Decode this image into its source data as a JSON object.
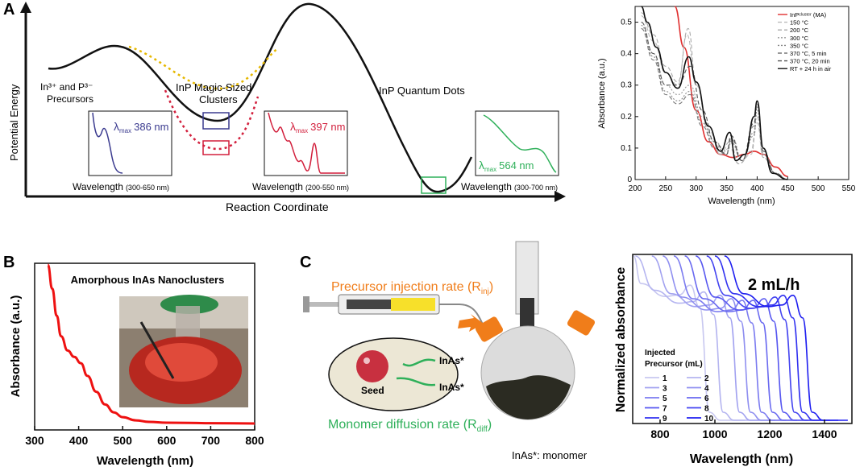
{
  "panels": {
    "A": {
      "letter": "A",
      "y_axis_label": "Potential Energy",
      "x_axis_label": "Reaction Coordinate",
      "precursors_label_1": "In³⁺ and P³⁻",
      "precursors_label_2": "Precursors",
      "msc_label_1": "InP Magic-Sized",
      "msc_label_2": "Clusters",
      "qd_label": "InP Quantum Dots",
      "insets": [
        {
          "lambda_label": "λ",
          "lambda_sub": "max",
          "value": "386 nm",
          "caption": "Wavelength",
          "range": "(300-650 nm)",
          "color": "#3b3b8f"
        },
        {
          "lambda_label": "λ",
          "lambda_sub": "max",
          "value": "397 nm",
          "caption": "Wavelength",
          "range": "(200-550 nm)",
          "color": "#d21f3c"
        },
        {
          "lambda_label": "λ",
          "lambda_sub": "max",
          "value": "564 nm",
          "caption": "Wavelength",
          "range": "(300-700 nm)",
          "color": "#2fb05a"
        }
      ]
    },
    "A_right": {
      "legend": [
        {
          "label": "InPᶜˡᵘˢᵗᵉʳ (MA)",
          "color": "#e03030",
          "dash": "solid"
        },
        {
          "label": "150 °C",
          "color": "#bbbbbb",
          "dash": "dash"
        },
        {
          "label": "200 °C",
          "color": "#aaaaaa",
          "dash": "dash"
        },
        {
          "label": "300 °C",
          "color": "#999999",
          "dash": "dot"
        },
        {
          "label": "350 °C",
          "color": "#888888",
          "dash": "dot"
        },
        {
          "label": "370 °C, 5 min",
          "color": "#777777",
          "dash": "dash"
        },
        {
          "label": "370 °C, 20 min",
          "color": "#555555",
          "dash": "dash"
        },
        {
          "label": "RT + 24 h in air",
          "color": "#111111",
          "dash": "solid"
        }
      ]
    },
    "B": {
      "letter": "B",
      "title": "Amorphous InAs Nanoclusters",
      "color": "#ee1111"
    },
    "C": {
      "letter": "C",
      "injection_label": "Precursor injection rate (R",
      "injection_sub": "inj",
      "injection_close": ")",
      "diffusion_label": "Monomer diffusion rate (R",
      "diffusion_sub": "diff",
      "diffusion_close": ")",
      "seed_label": "Seed",
      "monomer_1": "InAs*",
      "monomer_2": "InAs*",
      "monomer_note": "InAs*: monomer",
      "rate_label": "2 mL/h",
      "legend_title_1": "Injected",
      "legend_title_2": "Precursor (mL)",
      "legend_items": [
        "1",
        "2",
        "3",
        "4",
        "5",
        "6",
        "7",
        "8",
        "9",
        "10"
      ]
    }
  },
  "chart_data": [
    {
      "type": "line",
      "id": "A-right-absorbance",
      "title": "",
      "xlabel": "Wavelength (nm)",
      "ylabel": "Absorbance (a.u.)",
      "xlim": [
        200,
        550
      ],
      "ylim": [
        0,
        0.55
      ],
      "xticks": [
        "200",
        "250",
        "300",
        "350",
        "400",
        "450",
        "500",
        "550"
      ],
      "yticks": [
        "0",
        "0.1",
        "0.2",
        "0.3",
        "0.4",
        "0.5"
      ],
      "series": [
        {
          "name": "InP cluster (MA)",
          "x": [
            265,
            280,
            300,
            320,
            340,
            360,
            380,
            395,
            410,
            430,
            450
          ],
          "y": [
            0.55,
            0.42,
            0.22,
            0.12,
            0.08,
            0.07,
            0.08,
            0.09,
            0.08,
            0.04,
            0.01
          ]
        },
        {
          "name": "150 °C",
          "x": [
            210,
            230,
            250,
            270,
            285,
            300,
            320,
            340,
            355,
            370,
            390,
            400,
            410,
            430,
            450
          ],
          "y": [
            0.52,
            0.44,
            0.34,
            0.3,
            0.46,
            0.3,
            0.16,
            0.08,
            0.1,
            0.05,
            0.08,
            0.18,
            0.07,
            0.02,
            0.0
          ]
        },
        {
          "name": "200 °C",
          "x": [
            210,
            230,
            250,
            270,
            287,
            300,
            320,
            340,
            355,
            370,
            390,
            400,
            410,
            430,
            450
          ],
          "y": [
            0.53,
            0.46,
            0.36,
            0.31,
            0.48,
            0.31,
            0.17,
            0.08,
            0.12,
            0.05,
            0.09,
            0.2,
            0.07,
            0.02,
            0.0
          ]
        },
        {
          "name": "300 °C",
          "x": [
            210,
            230,
            250,
            270,
            290,
            310,
            330,
            350,
            360,
            375,
            395,
            400,
            410,
            430,
            450
          ],
          "y": [
            0.5,
            0.4,
            0.3,
            0.27,
            0.3,
            0.2,
            0.12,
            0.09,
            0.13,
            0.06,
            0.14,
            0.22,
            0.08,
            0.02,
            0.0
          ]
        },
        {
          "name": "350 °C",
          "x": [
            210,
            230,
            250,
            270,
            290,
            310,
            330,
            350,
            357,
            375,
            395,
            400,
            410,
            430,
            450
          ],
          "y": [
            0.49,
            0.39,
            0.28,
            0.25,
            0.28,
            0.18,
            0.11,
            0.08,
            0.12,
            0.06,
            0.15,
            0.23,
            0.08,
            0.02,
            0.0
          ]
        },
        {
          "name": "370 °C, 5 min",
          "x": [
            210,
            230,
            250,
            270,
            290,
            310,
            330,
            350,
            357,
            375,
            395,
            400,
            410,
            430,
            450
          ],
          "y": [
            0.48,
            0.38,
            0.27,
            0.24,
            0.27,
            0.17,
            0.1,
            0.08,
            0.13,
            0.06,
            0.17,
            0.24,
            0.09,
            0.02,
            0.0
          ]
        },
        {
          "name": "370 °C, 20 min",
          "x": [
            210,
            230,
            250,
            270,
            290,
            310,
            330,
            350,
            357,
            375,
            395,
            400,
            410,
            430,
            450
          ],
          "y": [
            0.5,
            0.4,
            0.3,
            0.3,
            0.36,
            0.22,
            0.12,
            0.08,
            0.14,
            0.06,
            0.18,
            0.25,
            0.09,
            0.02,
            0.0
          ]
        },
        {
          "name": "RT + 24 h in air",
          "x": [
            210,
            220,
            235,
            250,
            270,
            288,
            300,
            320,
            340,
            355,
            365,
            380,
            395,
            400,
            410,
            425,
            450
          ],
          "y": [
            0.55,
            0.5,
            0.42,
            0.34,
            0.29,
            0.39,
            0.31,
            0.17,
            0.09,
            0.15,
            0.06,
            0.08,
            0.2,
            0.25,
            0.1,
            0.02,
            0.0
          ]
        }
      ]
    },
    {
      "type": "line",
      "id": "B-absorbance",
      "title": "Amorphous InAs Nanoclusters",
      "xlabel": "Wavelength (nm)",
      "ylabel": "Absorbance (a.u.)",
      "xlim": [
        300,
        800
      ],
      "xticks": [
        "300",
        "400",
        "500",
        "600",
        "700",
        "800"
      ],
      "series": [
        {
          "name": "InAs nanoclusters",
          "x": [
            330,
            340,
            350,
            360,
            375,
            390,
            405,
            420,
            440,
            460,
            480,
            500,
            530,
            560,
            600,
            700,
            800
          ],
          "y": [
            1.0,
            0.85,
            0.68,
            0.55,
            0.46,
            0.42,
            0.38,
            0.3,
            0.2,
            0.12,
            0.07,
            0.04,
            0.02,
            0.01,
            0.005,
            0.002,
            0.0
          ]
        }
      ]
    },
    {
      "type": "line",
      "id": "C-normalized-absorbance",
      "title": "2 mL/h",
      "xlabel": "Wavelength (nm)",
      "ylabel": "Normalized absorbance",
      "xlim": [
        700,
        1500
      ],
      "xticks": [
        "800",
        "1000",
        "1200",
        "1400"
      ],
      "series": [
        {
          "name": "1",
          "peak": 910,
          "plateau": 0.78
        },
        {
          "name": "2",
          "peak": 960,
          "plateau": 0.74
        },
        {
          "name": "3",
          "peak": 1020,
          "plateau": 0.72
        },
        {
          "name": "4",
          "peak": 1060,
          "plateau": 0.7
        },
        {
          "name": "5",
          "peak": 1100,
          "plateau": 0.69
        },
        {
          "name": "6",
          "peak": 1140,
          "plateau": 0.69
        },
        {
          "name": "7",
          "peak": 1180,
          "plateau": 0.7
        },
        {
          "name": "8",
          "peak": 1220,
          "plateau": 0.71
        },
        {
          "name": "9",
          "peak": 1250,
          "plateau": 0.72
        },
        {
          "name": "10",
          "peak": 1285,
          "plateau": 0.72
        }
      ]
    }
  ]
}
